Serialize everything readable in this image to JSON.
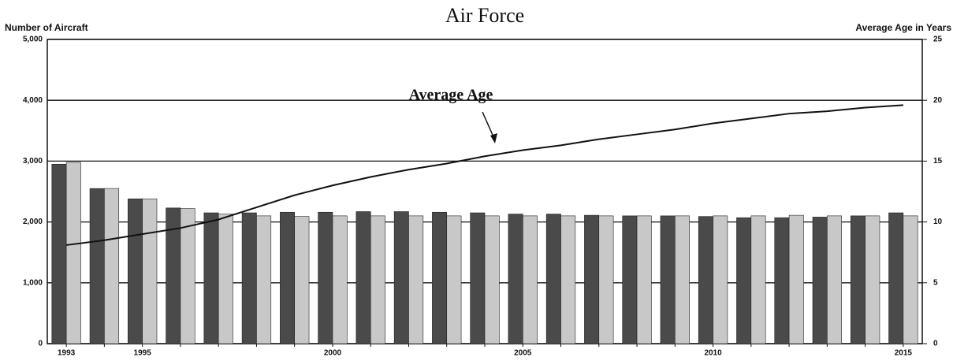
{
  "chart_data": {
    "type": "bar",
    "title": "Air Force",
    "ylabel": "Number of Aircraft",
    "y2label": "Average Age in Years",
    "categories": [
      "1993",
      null,
      "1995",
      null,
      null,
      null,
      null,
      "2000",
      null,
      null,
      null,
      null,
      "2005",
      null,
      null,
      null,
      null,
      "2010",
      null,
      null,
      null,
      null,
      "2015"
    ],
    "series": [
      {
        "color": "#4a4a4a",
        "values": [
          2950,
          2550,
          2380,
          2230,
          2150,
          2150,
          2160,
          2160,
          2170,
          2170,
          2160,
          2150,
          2130,
          2130,
          2110,
          2100,
          2100,
          2090,
          2070,
          2070,
          2080,
          2100,
          2150
        ]
      },
      {
        "color": "#c8c8c8",
        "values": [
          2980,
          2550,
          2380,
          2220,
          2130,
          2100,
          2090,
          2100,
          2100,
          2100,
          2100,
          2100,
          2100,
          2100,
          2100,
          2100,
          2100,
          2100,
          2100,
          2110,
          2100,
          2100,
          2100
        ]
      },
      {
        "name": "Average Age",
        "type": "line",
        "axis": "y2",
        "color": "#111111",
        "values": [
          8.1,
          8.5,
          9.0,
          9.5,
          10.2,
          11.2,
          12.2,
          13.0,
          13.7,
          14.3,
          14.8,
          15.4,
          15.9,
          16.3,
          16.8,
          17.2,
          17.6,
          18.1,
          18.5,
          18.9,
          19.1,
          19.4,
          19.6
        ]
      }
    ],
    "ylim": [
      0,
      5000
    ],
    "yticks": [
      0,
      {
        "value": 1000,
        "label": "1,000"
      },
      {
        "value": 2000,
        "label": "2,000"
      },
      {
        "value": 3000,
        "label": "3,000"
      },
      {
        "value": 4000,
        "label": "4,000"
      },
      {
        "value": 5000,
        "label": "5,000"
      }
    ],
    "y2lim": [
      0,
      25
    ],
    "y2ticks": [
      0,
      5,
      10,
      15,
      20,
      25
    ],
    "grid": true
  }
}
